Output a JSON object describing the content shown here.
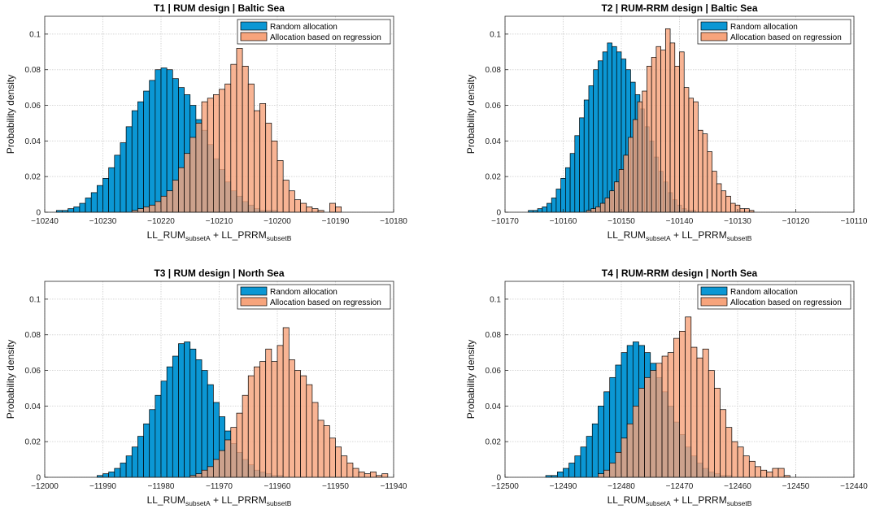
{
  "colors": {
    "random": "#0b97d4",
    "regression": "#f7a47c",
    "overlap": "#b8745f",
    "edge": "#000000",
    "grid": "#d6d6d6"
  },
  "chart_data": [
    {
      "type": "bar",
      "title": "T1 |   RUM design   | Baltic Sea",
      "ylabel": "Probability density",
      "xlabel_parts": [
        "LL_RUM",
        "subsetA",
        " + LL_PRRM",
        "subsetB"
      ],
      "xlim": [
        -10240,
        -10180
      ],
      "ylim": [
        0,
        0.11
      ],
      "xticks": [
        -10240,
        -10230,
        -10220,
        -10210,
        -10200,
        -10190,
        -10180
      ],
      "yticks": [
        0,
        0.02,
        0.04,
        0.06,
        0.08,
        0.1
      ],
      "ytick_labels": [
        "0",
        "0.02",
        "0.04",
        "0.06",
        "0.08",
        "0.1"
      ],
      "grid": true,
      "legend_position": "top-right",
      "bin_width": 1,
      "series": [
        {
          "name": "Random allocation",
          "bin_start": -10238,
          "values": [
            0.001,
            0.001,
            0.002,
            0.003,
            0.005,
            0.008,
            0.011,
            0.015,
            0.019,
            0.025,
            0.032,
            0.039,
            0.048,
            0.057,
            0.062,
            0.068,
            0.074,
            0.08,
            0.081,
            0.08,
            0.075,
            0.07,
            0.066,
            0.06,
            0.052,
            0.046,
            0.038,
            0.03,
            0.024,
            0.017,
            0.012,
            0.009,
            0.006,
            0.004,
            0.002,
            0.001,
            0.001,
            0.001
          ]
        },
        {
          "name": "Allocation based on regression",
          "bin_start": -10225,
          "values": [
            0.001,
            0.002,
            0.003,
            0.004,
            0.006,
            0.009,
            0.012,
            0.018,
            0.025,
            0.033,
            0.042,
            0.05,
            0.062,
            0.064,
            0.066,
            0.069,
            0.072,
            0.083,
            0.092,
            0.082,
            0.072,
            0.057,
            0.061,
            0.05,
            0.04,
            0.029,
            0.018,
            0.012,
            0.007,
            0.005,
            0.003,
            0.002,
            0.001,
            0.0,
            0.005,
            0.003
          ]
        }
      ]
    },
    {
      "type": "bar",
      "title": "T2 | RUM-RRM design | Baltic Sea",
      "ylabel": "Probability density",
      "xlabel_parts": [
        "LL_RUM",
        "subsetA",
        " + LL_PRRM",
        "subsetB"
      ],
      "xlim": [
        -10170,
        -10110
      ],
      "ylim": [
        0,
        0.11
      ],
      "xticks": [
        -10170,
        -10160,
        -10150,
        -10140,
        -10130,
        -10120,
        -10110
      ],
      "yticks": [
        0,
        0.02,
        0.04,
        0.06,
        0.08,
        0.1
      ],
      "ytick_labels": [
        "0",
        "0.02",
        "0.04",
        "0.06",
        "0.08",
        "0.1"
      ],
      "grid": true,
      "legend_position": "top-right",
      "bin_width": 0.8,
      "series": [
        {
          "name": "Random allocation",
          "bin_start": -10166,
          "values": [
            0.001,
            0.001,
            0.002,
            0.003,
            0.005,
            0.008,
            0.013,
            0.019,
            0.025,
            0.033,
            0.043,
            0.053,
            0.063,
            0.071,
            0.08,
            0.085,
            0.09,
            0.095,
            0.093,
            0.09,
            0.086,
            0.08,
            0.073,
            0.066,
            0.058,
            0.048,
            0.04,
            0.031,
            0.023,
            0.017,
            0.011,
            0.007,
            0.004,
            0.002,
            0.001,
            0.001
          ]
        },
        {
          "name": "Allocation based on regression",
          "bin_start": -10156,
          "values": [
            0.001,
            0.002,
            0.003,
            0.005,
            0.008,
            0.012,
            0.017,
            0.024,
            0.032,
            0.042,
            0.052,
            0.062,
            0.068,
            0.082,
            0.087,
            0.093,
            0.091,
            0.103,
            0.095,
            0.082,
            0.09,
            0.07,
            0.064,
            0.062,
            0.046,
            0.044,
            0.034,
            0.023,
            0.016,
            0.012,
            0.009,
            0.005,
            0.004,
            0.002,
            0.002,
            0.001
          ]
        }
      ]
    },
    {
      "type": "bar",
      "title": "T3 |   RUM design   | North Sea",
      "ylabel": "Probability density",
      "xlabel_parts": [
        "LL_RUM",
        "subsetA",
        " + LL_PRRM",
        "subsetB"
      ],
      "xlim": [
        -12000,
        -11940
      ],
      "ylim": [
        0,
        0.11
      ],
      "xticks": [
        -12000,
        -11990,
        -11980,
        -11970,
        -11960,
        -11950,
        -11940
      ],
      "yticks": [
        0,
        0.02,
        0.04,
        0.06,
        0.08,
        0.1
      ],
      "ytick_labels": [
        "0",
        "0.02",
        "0.04",
        "0.06",
        "0.08",
        "0.1"
      ],
      "grid": true,
      "legend_position": "top-right",
      "bin_width": 1,
      "series": [
        {
          "name": "Random allocation",
          "bin_start": -11991,
          "values": [
            0.001,
            0.002,
            0.003,
            0.005,
            0.008,
            0.012,
            0.017,
            0.023,
            0.03,
            0.038,
            0.046,
            0.054,
            0.062,
            0.068,
            0.075,
            0.076,
            0.072,
            0.066,
            0.06,
            0.052,
            0.042,
            0.034,
            0.026,
            0.019,
            0.014,
            0.01,
            0.007,
            0.004,
            0.003,
            0.002,
            0.001,
            0.001
          ]
        },
        {
          "name": "Allocation based on regression",
          "bin_start": -11975,
          "values": [
            0.001,
            0.002,
            0.004,
            0.006,
            0.01,
            0.015,
            0.021,
            0.028,
            0.036,
            0.046,
            0.057,
            0.062,
            0.065,
            0.072,
            0.065,
            0.074,
            0.084,
            0.066,
            0.06,
            0.057,
            0.052,
            0.042,
            0.032,
            0.029,
            0.022,
            0.017,
            0.012,
            0.008,
            0.005,
            0.003,
            0.002,
            0.003,
            0.001,
            0.002
          ]
        }
      ]
    },
    {
      "type": "bar",
      "title": "T4 | RUM-RRM design | North Sea",
      "ylabel": "Probability density",
      "xlabel_parts": [
        "LL_RUM",
        "subsetA",
        " + LL_PRRM",
        "subsetB"
      ],
      "xlim": [
        -12500,
        -12440
      ],
      "ylim": [
        0,
        0.11
      ],
      "xticks": [
        -12500,
        -12490,
        -12480,
        -12470,
        -12460,
        -12450,
        -12440
      ],
      "yticks": [
        0,
        0.02,
        0.04,
        0.06,
        0.08,
        0.1
      ],
      "ytick_labels": [
        "0",
        "0.02",
        "0.04",
        "0.06",
        "0.08",
        "0.1"
      ],
      "grid": true,
      "legend_position": "top-right",
      "bin_width": 1,
      "series": [
        {
          "name": "Random allocation",
          "bin_start": -12493,
          "values": [
            0.001,
            0.001,
            0.003,
            0.005,
            0.008,
            0.012,
            0.017,
            0.023,
            0.03,
            0.04,
            0.048,
            0.056,
            0.063,
            0.07,
            0.074,
            0.076,
            0.074,
            0.07,
            0.064,
            0.056,
            0.048,
            0.04,
            0.031,
            0.024,
            0.017,
            0.012,
            0.008,
            0.005,
            0.003,
            0.002,
            0.001,
            0.001
          ]
        },
        {
          "name": "Allocation based on regression",
          "bin_start": -12484,
          "values": [
            0.002,
            0.004,
            0.008,
            0.014,
            0.022,
            0.03,
            0.04,
            0.05,
            0.056,
            0.06,
            0.064,
            0.068,
            0.07,
            0.078,
            0.082,
            0.09,
            0.073,
            0.067,
            0.072,
            0.06,
            0.05,
            0.038,
            0.028,
            0.02,
            0.017,
            0.012,
            0.009,
            0.006,
            0.004,
            0.003,
            0.005,
            0.005,
            0.001
          ]
        }
      ]
    }
  ]
}
